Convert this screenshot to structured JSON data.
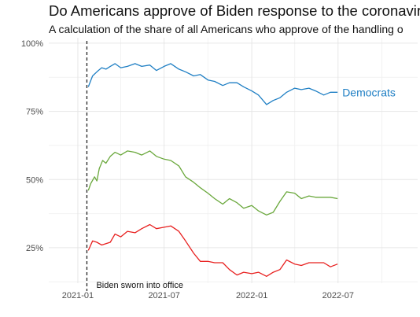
{
  "chart_data": {
    "type": "line",
    "title": "Do Americans approve of Biden response to the coronavirus",
    "subtitle": "A calculation of the share of all Americans who approve of the handling o",
    "xlabel": "",
    "ylabel": "",
    "x_ticks": [
      "2021-01",
      "2021-07",
      "2022-01",
      "2022-07"
    ],
    "y_ticks": [
      "25%",
      "50%",
      "75%",
      "100%"
    ],
    "ylim": [
      12,
      102
    ],
    "xlim": [
      "2020-11-01",
      "2022-12-15"
    ],
    "grid": true,
    "annotation": {
      "text": "Biden sworn into office",
      "date": "2021-01-20"
    },
    "series": [
      {
        "name": "Democrats",
        "color": "#1f7fc4",
        "labeled": true,
        "points": [
          [
            "2021-01-23",
            84.0
          ],
          [
            "2021-02-01",
            88.0
          ],
          [
            "2021-02-10",
            89.5
          ],
          [
            "2021-02-20",
            91.0
          ],
          [
            "2021-03-01",
            90.5
          ],
          [
            "2021-03-10",
            91.5
          ],
          [
            "2021-03-20",
            92.5
          ],
          [
            "2021-04-01",
            91.0
          ],
          [
            "2021-04-15",
            91.5
          ],
          [
            "2021-05-01",
            92.5
          ],
          [
            "2021-05-15",
            91.5
          ],
          [
            "2021-06-01",
            92.0
          ],
          [
            "2021-06-15",
            90.0
          ],
          [
            "2021-07-01",
            91.5
          ],
          [
            "2021-07-15",
            92.5
          ],
          [
            "2021-08-01",
            90.5
          ],
          [
            "2021-08-15",
            89.5
          ],
          [
            "2021-09-01",
            88.0
          ],
          [
            "2021-09-15",
            88.5
          ],
          [
            "2021-10-01",
            86.5
          ],
          [
            "2021-10-15",
            86.0
          ],
          [
            "2021-11-01",
            84.5
          ],
          [
            "2021-11-15",
            85.5
          ],
          [
            "2021-12-01",
            85.5
          ],
          [
            "2021-12-15",
            84.0
          ],
          [
            "2022-01-01",
            82.5
          ],
          [
            "2022-01-15",
            81.0
          ],
          [
            "2022-02-01",
            77.5
          ],
          [
            "2022-02-15",
            79.0
          ],
          [
            "2022-03-01",
            80.0
          ],
          [
            "2022-03-15",
            82.0
          ],
          [
            "2022-04-01",
            83.5
          ],
          [
            "2022-04-15",
            83.0
          ],
          [
            "2022-05-01",
            83.5
          ],
          [
            "2022-05-15",
            82.5
          ],
          [
            "2022-06-01",
            81.0
          ],
          [
            "2022-06-15",
            82.0
          ],
          [
            "2022-06-30",
            82.0
          ]
        ]
      },
      {
        "name": "",
        "color": "#6aa83c",
        "labeled": false,
        "points": [
          [
            "2021-01-23",
            46.0
          ],
          [
            "2021-01-28",
            48.5
          ],
          [
            "2021-02-05",
            51.0
          ],
          [
            "2021-02-10",
            49.5
          ],
          [
            "2021-02-15",
            54.0
          ],
          [
            "2021-02-22",
            57.0
          ],
          [
            "2021-03-01",
            56.0
          ],
          [
            "2021-03-10",
            58.5
          ],
          [
            "2021-03-20",
            60.0
          ],
          [
            "2021-04-01",
            59.0
          ],
          [
            "2021-04-15",
            60.5
          ],
          [
            "2021-05-01",
            60.0
          ],
          [
            "2021-05-15",
            59.0
          ],
          [
            "2021-06-01",
            60.5
          ],
          [
            "2021-06-15",
            58.5
          ],
          [
            "2021-07-01",
            57.5
          ],
          [
            "2021-07-15",
            57.0
          ],
          [
            "2021-08-01",
            55.0
          ],
          [
            "2021-08-15",
            51.0
          ],
          [
            "2021-09-01",
            49.0
          ],
          [
            "2021-09-15",
            47.0
          ],
          [
            "2021-10-01",
            45.0
          ],
          [
            "2021-10-15",
            43.0
          ],
          [
            "2021-11-01",
            41.0
          ],
          [
            "2021-11-15",
            43.0
          ],
          [
            "2021-12-01",
            41.5
          ],
          [
            "2021-12-15",
            39.5
          ],
          [
            "2022-01-01",
            40.5
          ],
          [
            "2022-01-15",
            38.5
          ],
          [
            "2022-02-01",
            37.0
          ],
          [
            "2022-02-15",
            38.0
          ],
          [
            "2022-03-01",
            42.0
          ],
          [
            "2022-03-15",
            45.5
          ],
          [
            "2022-04-01",
            45.0
          ],
          [
            "2022-04-15",
            43.0
          ],
          [
            "2022-05-01",
            44.0
          ],
          [
            "2022-05-15",
            43.5
          ],
          [
            "2022-06-01",
            43.5
          ],
          [
            "2022-06-15",
            43.5
          ],
          [
            "2022-06-30",
            43.0
          ]
        ]
      },
      {
        "name": "",
        "color": "#e8201f",
        "labeled": false,
        "points": [
          [
            "2021-01-23",
            24.0
          ],
          [
            "2021-02-01",
            27.5
          ],
          [
            "2021-02-10",
            27.0
          ],
          [
            "2021-02-20",
            26.0
          ],
          [
            "2021-03-01",
            26.5
          ],
          [
            "2021-03-10",
            27.0
          ],
          [
            "2021-03-20",
            30.0
          ],
          [
            "2021-04-01",
            29.0
          ],
          [
            "2021-04-15",
            31.0
          ],
          [
            "2021-05-01",
            30.5
          ],
          [
            "2021-05-15",
            32.0
          ],
          [
            "2021-06-01",
            33.5
          ],
          [
            "2021-06-15",
            32.0
          ],
          [
            "2021-07-01",
            32.5
          ],
          [
            "2021-07-15",
            33.0
          ],
          [
            "2021-08-01",
            31.0
          ],
          [
            "2021-08-15",
            27.5
          ],
          [
            "2021-09-01",
            23.0
          ],
          [
            "2021-09-15",
            20.0
          ],
          [
            "2021-10-01",
            20.0
          ],
          [
            "2021-10-15",
            19.5
          ],
          [
            "2021-11-01",
            19.5
          ],
          [
            "2021-11-15",
            17.0
          ],
          [
            "2021-12-01",
            15.0
          ],
          [
            "2021-12-15",
            16.0
          ],
          [
            "2022-01-01",
            15.5
          ],
          [
            "2022-01-15",
            16.0
          ],
          [
            "2022-02-01",
            14.5
          ],
          [
            "2022-02-15",
            16.0
          ],
          [
            "2022-03-01",
            17.0
          ],
          [
            "2022-03-15",
            20.5
          ],
          [
            "2022-04-01",
            19.0
          ],
          [
            "2022-04-15",
            18.5
          ],
          [
            "2022-05-01",
            19.5
          ],
          [
            "2022-05-15",
            19.5
          ],
          [
            "2022-06-01",
            19.5
          ],
          [
            "2022-06-15",
            18.0
          ],
          [
            "2022-06-30",
            19.0
          ]
        ]
      }
    ]
  }
}
